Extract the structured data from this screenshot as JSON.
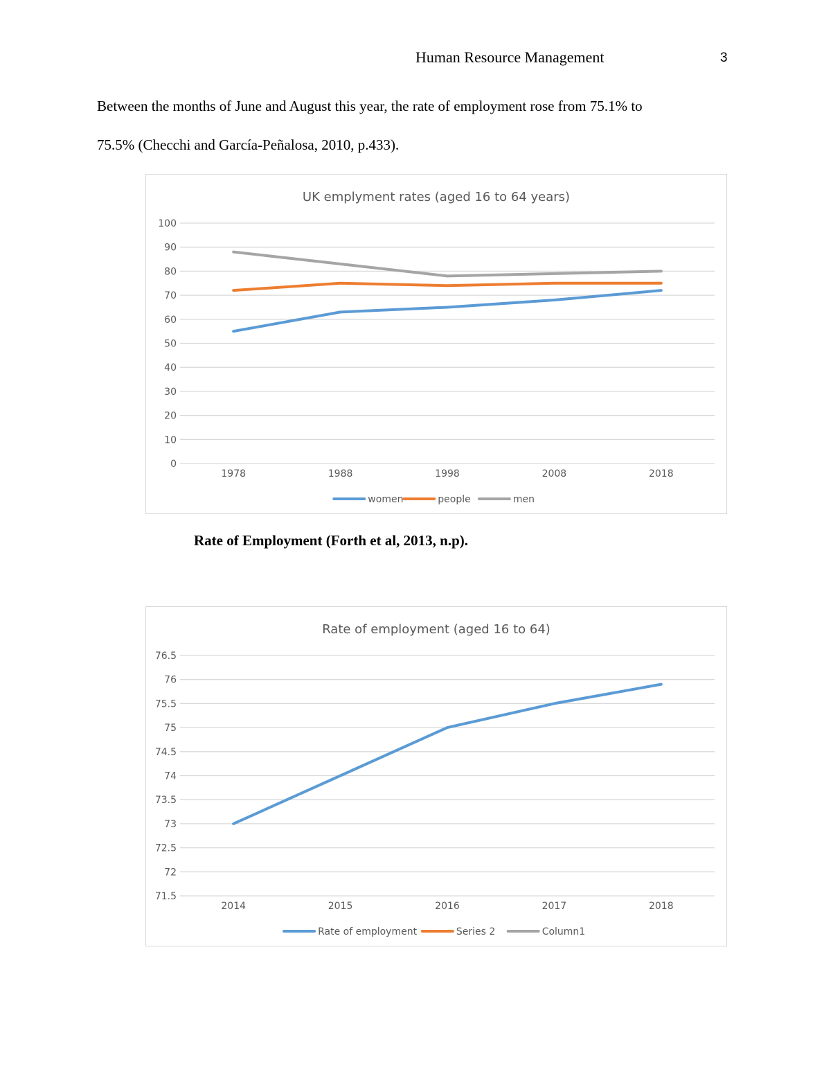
{
  "header": {
    "title": "Human Resource Management",
    "page_number": "3"
  },
  "body": {
    "paragraph_line1": "Between the months of June and August this year, the rate of employment rose from 75.1% to",
    "paragraph_line2": "75.5% (Checchi and García-Peñalosa, 2010, p.433).",
    "caption": "Rate of Employment (Forth et al, 2013, n.p)."
  },
  "colors": {
    "blue": "#5b9bd5",
    "orange": "#ed7d31",
    "gray": "#a5a5a5",
    "gridline": "#d9d9d9",
    "text": "#595959"
  },
  "chart_data": [
    {
      "type": "line",
      "title": "UK emplyment rates (aged 16 to 64 years)",
      "categories": [
        "1978",
        "1988",
        "1998",
        "2008",
        "2018"
      ],
      "series": [
        {
          "name": "women",
          "color": "#5b9bd5",
          "values": [
            55,
            63,
            65,
            68,
            72
          ]
        },
        {
          "name": "people",
          "color": "#ed7d31",
          "values": [
            72,
            75,
            74,
            75,
            75
          ]
        },
        {
          "name": "men",
          "color": "#a5a5a5",
          "values": [
            88,
            83,
            78,
            79,
            80
          ]
        }
      ],
      "xlabel": "",
      "ylabel": "",
      "ylim": [
        0,
        100
      ],
      "yticks": [
        "0",
        "10",
        "20",
        "30",
        "40",
        "50",
        "60",
        "70",
        "80",
        "90",
        "100"
      ],
      "ytick_values": [
        0,
        10,
        20,
        30,
        40,
        50,
        60,
        70,
        80,
        90,
        100
      ],
      "grid": true,
      "legend_position": "bottom"
    },
    {
      "type": "line",
      "title": "Rate of employment (aged 16 to 64)",
      "categories": [
        "2014",
        "2015",
        "2016",
        "2017",
        "2018"
      ],
      "series": [
        {
          "name": "Rate of employment",
          "color": "#5b9bd5",
          "values": [
            73,
            74,
            75,
            75.5,
            75.9
          ]
        },
        {
          "name": "Series 2",
          "color": "#ed7d31",
          "values": []
        },
        {
          "name": "Column1",
          "color": "#a5a5a5",
          "values": []
        }
      ],
      "xlabel": "",
      "ylabel": "",
      "ylim": [
        71.5,
        76.5
      ],
      "yticks": [
        "71.5",
        "72",
        "72.5",
        "73",
        "73.5",
        "74",
        "74.5",
        "75",
        "75.5",
        "76",
        "76.5"
      ],
      "ytick_values": [
        71.5,
        72,
        72.5,
        73,
        73.5,
        74,
        74.5,
        75,
        75.5,
        76,
        76.5
      ],
      "grid": true,
      "legend_position": "bottom"
    }
  ]
}
